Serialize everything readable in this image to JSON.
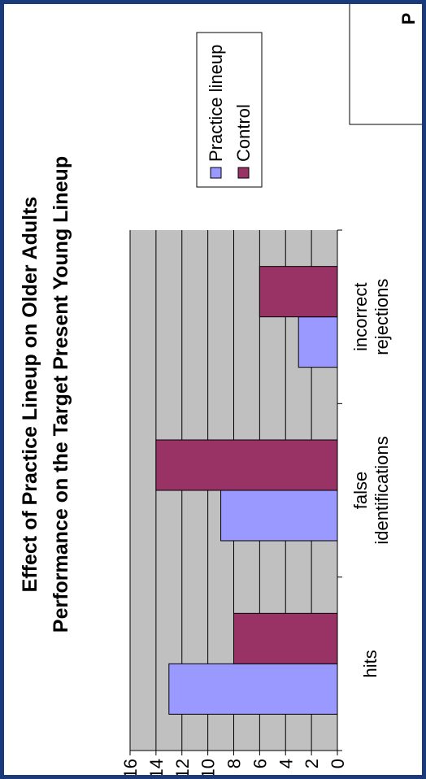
{
  "chart_data": {
    "type": "bar",
    "orientation": "vertical",
    "title": "Effect of Practice Lineup on Older Adults",
    "subtitle": "Performance on the Target Present Young Lineup",
    "categories": [
      "hits",
      "false identifications",
      "incorrect rejections"
    ],
    "category_lines": [
      [
        "hits"
      ],
      [
        "false",
        "identifications"
      ],
      [
        "incorrect",
        "rejections"
      ]
    ],
    "series": [
      {
        "name": "Practice lineup",
        "values": [
          13,
          9,
          3
        ],
        "color": "#9999ff"
      },
      {
        "name": "Control",
        "values": [
          8,
          14,
          6
        ],
        "color": "#993366"
      }
    ],
    "ylim": [
      0,
      16
    ],
    "yticks": [
      0,
      2,
      4,
      6,
      8,
      10,
      12,
      14,
      16
    ],
    "grid": true,
    "plot_background": "#c0c0c0",
    "legend_position": "top-right"
  },
  "frame_color": "#1a3a7a",
  "side_panel_label": "P"
}
